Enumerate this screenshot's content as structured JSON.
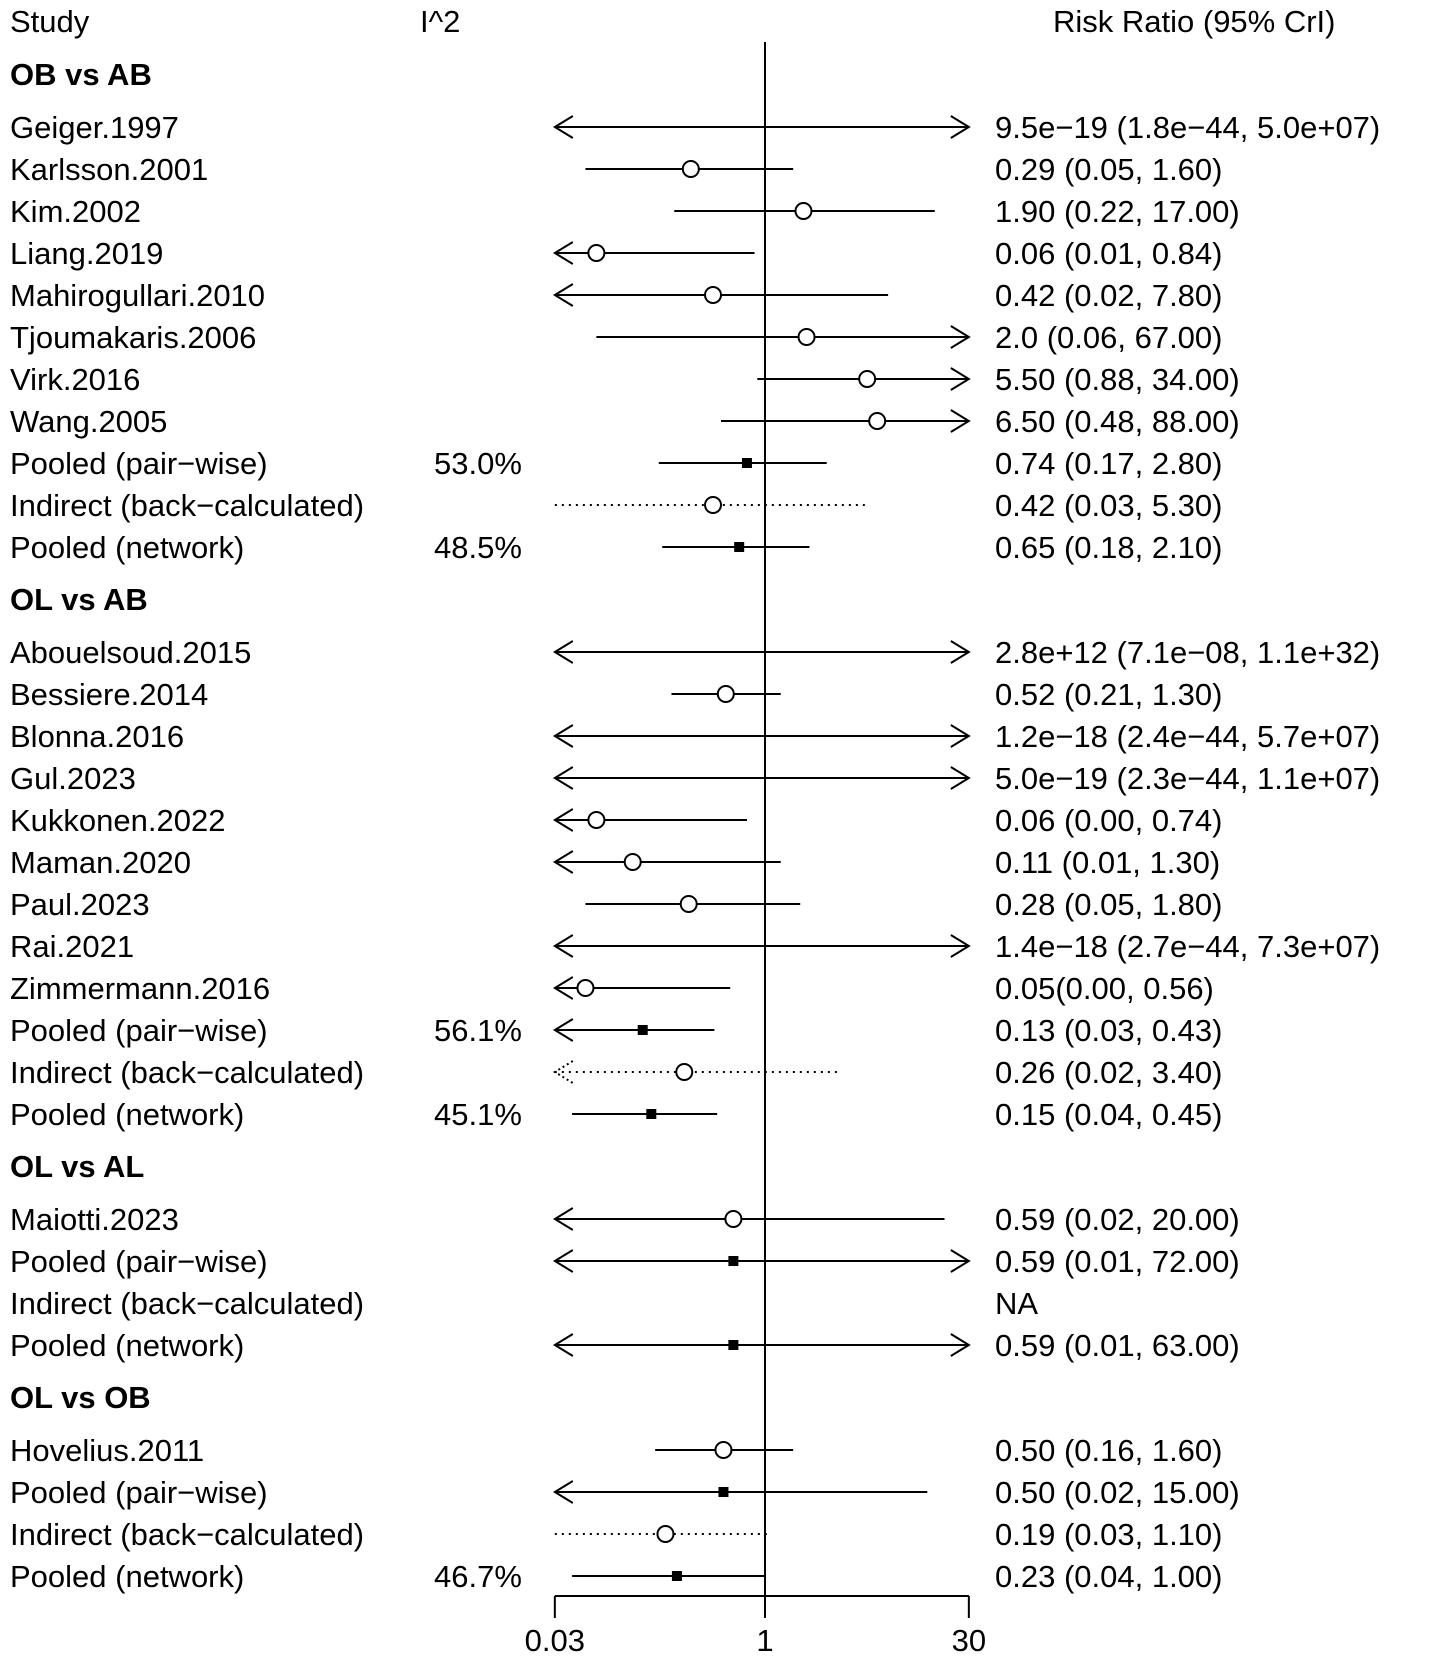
{
  "header": {
    "study": "Study",
    "i2": "I^2",
    "rr": "Risk Ratio (95% CrI)"
  },
  "chart_data": {
    "type": "forest",
    "xscale": "log",
    "xlim": [
      0.03,
      30
    ],
    "reference_line": 1,
    "ticks": [
      {
        "value": 0.03,
        "label": "0.03"
      },
      {
        "value": 1,
        "label": "1"
      },
      {
        "value": 30,
        "label": "30"
      }
    ],
    "colors": {
      "ink": "#000000"
    },
    "groups": [
      {
        "title": "OB vs AB",
        "rows": [
          {
            "study": "Geiger.1997",
            "i2": "",
            "est": 9.5e-19,
            "lo": 1.8e-44,
            "hi": 50000000.0,
            "ci_text": "9.5e−19 (1.8e−44, 5.0e+07)",
            "kind": "study"
          },
          {
            "study": "Karlsson.2001",
            "i2": "",
            "est": 0.29,
            "lo": 0.05,
            "hi": 1.6,
            "ci_text": "0.29 (0.05, 1.60)",
            "kind": "study"
          },
          {
            "study": "Kim.2002",
            "i2": "",
            "est": 1.9,
            "lo": 0.22,
            "hi": 17.0,
            "ci_text": "1.90 (0.22, 17.00)",
            "kind": "study"
          },
          {
            "study": "Liang.2019",
            "i2": "",
            "est": 0.06,
            "lo": 0.01,
            "hi": 0.84,
            "ci_text": "0.06 (0.01, 0.84)",
            "kind": "study"
          },
          {
            "study": "Mahirogullari.2010",
            "i2": "",
            "est": 0.42,
            "lo": 0.02,
            "hi": 7.8,
            "ci_text": "0.42 (0.02, 7.80)",
            "kind": "study"
          },
          {
            "study": "Tjoumakaris.2006",
            "i2": "",
            "est": 2.0,
            "lo": 0.06,
            "hi": 67.0,
            "ci_text": "2.0 (0.06, 67.00)",
            "kind": "study"
          },
          {
            "study": "Virk.2016",
            "i2": "",
            "est": 5.5,
            "lo": 0.88,
            "hi": 34.0,
            "ci_text": "5.50 (0.88, 34.00)",
            "kind": "study"
          },
          {
            "study": "Wang.2005",
            "i2": "",
            "est": 6.5,
            "lo": 0.48,
            "hi": 88.0,
            "ci_text": "6.50 (0.48, 88.00)",
            "kind": "study"
          },
          {
            "study": "Pooled (pair−wise)",
            "i2": "53.0%",
            "est": 0.74,
            "lo": 0.17,
            "hi": 2.8,
            "ci_text": "0.74 (0.17, 2.80)",
            "kind": "pooled"
          },
          {
            "study": "Indirect (back−calculated)",
            "i2": "",
            "est": 0.42,
            "lo": 0.03,
            "hi": 5.3,
            "ci_text": "0.42 (0.03, 5.30)",
            "kind": "indirect"
          },
          {
            "study": "Pooled (network)",
            "i2": "48.5%",
            "est": 0.65,
            "lo": 0.18,
            "hi": 2.1,
            "ci_text": "0.65 (0.18, 2.10)",
            "kind": "pooled"
          }
        ]
      },
      {
        "title": "OL vs AB",
        "rows": [
          {
            "study": "Abouelsoud.2015",
            "i2": "",
            "est": 2800000000000.0,
            "lo": 7.1e-08,
            "hi": 1.1e+32,
            "ci_text": "2.8e+12 (7.1e−08, 1.1e+32)",
            "kind": "study"
          },
          {
            "study": "Bessiere.2014",
            "i2": "",
            "est": 0.52,
            "lo": 0.21,
            "hi": 1.3,
            "ci_text": "0.52 (0.21, 1.30)",
            "kind": "study"
          },
          {
            "study": "Blonna.2016",
            "i2": "",
            "est": 1.2e-18,
            "lo": 2.4e-44,
            "hi": 57000000.0,
            "ci_text": "1.2e−18 (2.4e−44, 5.7e+07)",
            "kind": "study"
          },
          {
            "study": "Gul.2023",
            "i2": "",
            "est": 5e-19,
            "lo": 2.3e-44,
            "hi": 11000000.0,
            "ci_text": "5.0e−19 (2.3e−44, 1.1e+07)",
            "kind": "study"
          },
          {
            "study": "Kukkonen.2022",
            "i2": "",
            "est": 0.06,
            "lo": 0.001,
            "hi": 0.74,
            "ci_text": "0.06 (0.00, 0.74)",
            "kind": "study"
          },
          {
            "study": "Maman.2020",
            "i2": "",
            "est": 0.11,
            "lo": 0.01,
            "hi": 1.3,
            "ci_text": "0.11 (0.01, 1.30)",
            "kind": "study"
          },
          {
            "study": "Paul.2023",
            "i2": "",
            "est": 0.28,
            "lo": 0.05,
            "hi": 1.8,
            "ci_text": "0.28 (0.05, 1.80)",
            "kind": "study"
          },
          {
            "study": "Rai.2021",
            "i2": "",
            "est": 1.4e-18,
            "lo": 2.7e-44,
            "hi": 73000000.0,
            "ci_text": "1.4e−18 (2.7e−44, 7.3e+07)",
            "kind": "study"
          },
          {
            "study": "Zimmermann.2016",
            "i2": "",
            "est": 0.05,
            "lo": 0.001,
            "hi": 0.56,
            "ci_text": "0.05(0.00, 0.56)",
            "kind": "study"
          },
          {
            "study": "Pooled (pair−wise)",
            "i2": "56.1%",
            "est": 0.13,
            "lo": 0.029,
            "hi": 0.43,
            "ci_text": "0.13 (0.03, 0.43)",
            "kind": "pooled"
          },
          {
            "study": "Indirect (back−calculated)",
            "i2": "",
            "est": 0.26,
            "lo": 0.02,
            "hi": 3.4,
            "ci_text": "0.26 (0.02, 3.40)",
            "kind": "indirect"
          },
          {
            "study": "Pooled (network)",
            "i2": "45.1%",
            "est": 0.15,
            "lo": 0.04,
            "hi": 0.45,
            "ci_text": "0.15 (0.04, 0.45)",
            "kind": "pooled"
          }
        ]
      },
      {
        "title": "OL vs AL",
        "rows": [
          {
            "study": "Maiotti.2023",
            "i2": "",
            "est": 0.59,
            "lo": 0.02,
            "hi": 20.0,
            "ci_text": "0.59 (0.02, 20.00)",
            "kind": "study"
          },
          {
            "study": "Pooled (pair−wise)",
            "i2": "",
            "est": 0.59,
            "lo": 0.01,
            "hi": 72.0,
            "ci_text": "0.59 (0.01, 72.00)",
            "kind": "pooled"
          },
          {
            "study": "Indirect (back−calculated)",
            "i2": "",
            "est": null,
            "lo": null,
            "hi": null,
            "ci_text": "NA",
            "kind": "indirect"
          },
          {
            "study": "Pooled (network)",
            "i2": "",
            "est": 0.59,
            "lo": 0.01,
            "hi": 63.0,
            "ci_text": "0.59 (0.01, 63.00)",
            "kind": "pooled"
          }
        ]
      },
      {
        "title": "OL vs OB",
        "rows": [
          {
            "study": "Hovelius.2011",
            "i2": "",
            "est": 0.5,
            "lo": 0.16,
            "hi": 1.6,
            "ci_text": "0.50 (0.16, 1.60)",
            "kind": "study"
          },
          {
            "study": "Pooled (pair−wise)",
            "i2": "",
            "est": 0.5,
            "lo": 0.02,
            "hi": 15.0,
            "ci_text": "0.50 (0.02, 15.00)",
            "kind": "pooled"
          },
          {
            "study": "Indirect (back−calculated)",
            "i2": "",
            "est": 0.19,
            "lo": 0.03,
            "hi": 1.1,
            "ci_text": "0.19 (0.03, 1.10)",
            "kind": "indirect"
          },
          {
            "study": "Pooled (network)",
            "i2": "46.7%",
            "est": 0.23,
            "lo": 0.04,
            "hi": 1.0,
            "ci_text": "0.23 (0.04, 1.00)",
            "kind": "pooled"
          }
        ]
      }
    ]
  }
}
